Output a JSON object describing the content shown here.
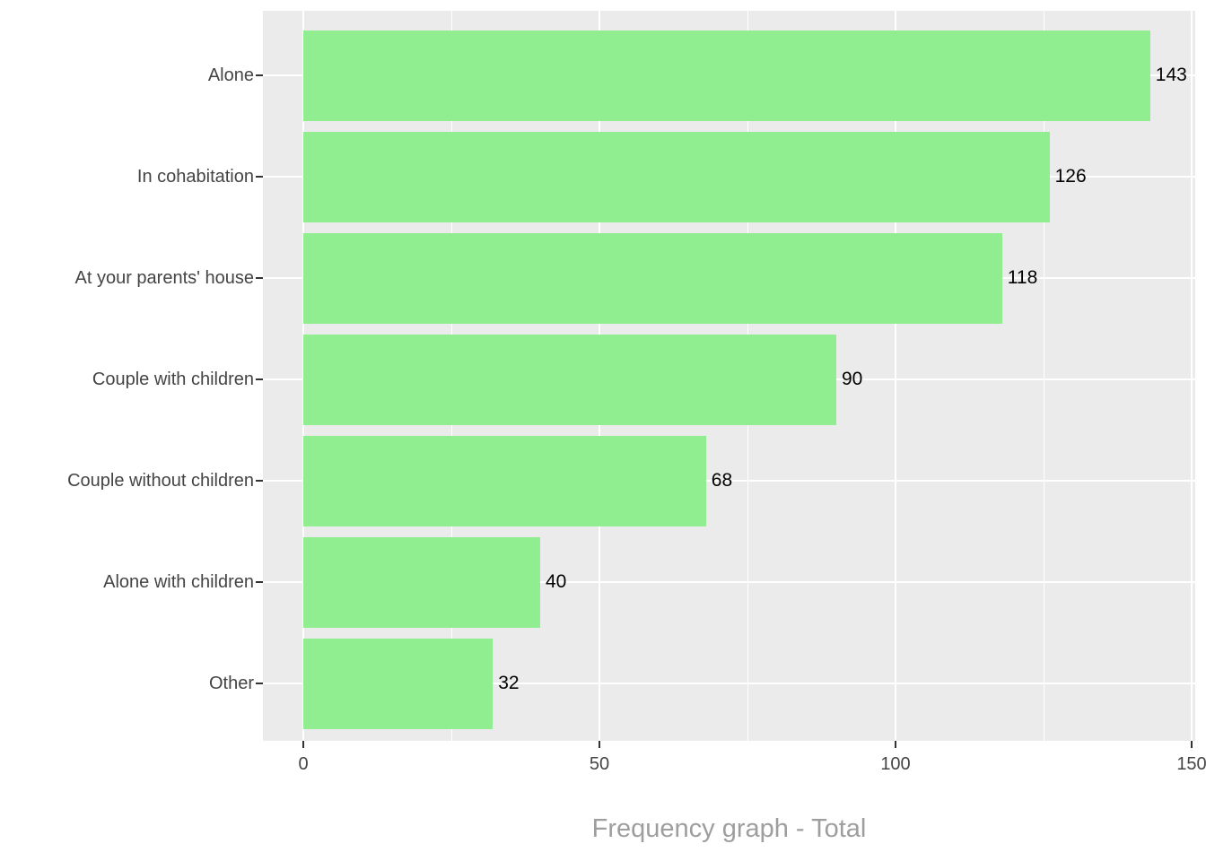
{
  "chart_data": {
    "type": "bar",
    "orientation": "horizontal",
    "title": "Frequency graph - Total",
    "xlabel": "",
    "ylabel": "",
    "categories": [
      "Alone",
      "In cohabitation",
      "At your parents' house",
      "Couple with children",
      "Couple without children",
      "Alone with children",
      "Other"
    ],
    "values": [
      143,
      126,
      118,
      90,
      68,
      40,
      32
    ],
    "value_labels": [
      "143",
      "126",
      "118",
      "90",
      "68",
      "40",
      "32"
    ],
    "xlim": [
      0,
      150
    ],
    "x_major_ticks": [
      0,
      50,
      100,
      150
    ],
    "x_tick_labels": [
      "0",
      "50",
      "100",
      "150"
    ],
    "x_minor_ticks": [
      25,
      75,
      125
    ],
    "grid": "on",
    "legend": "none",
    "colors": {
      "bar_fill": "#90EE90",
      "panel_background": "#EBEBEB",
      "gridline": "#FFFFFF",
      "axis_text": "#444444",
      "value_label_text": "#000000",
      "tick_mark": "#333333",
      "title_text": "#9E9E9E"
    }
  }
}
